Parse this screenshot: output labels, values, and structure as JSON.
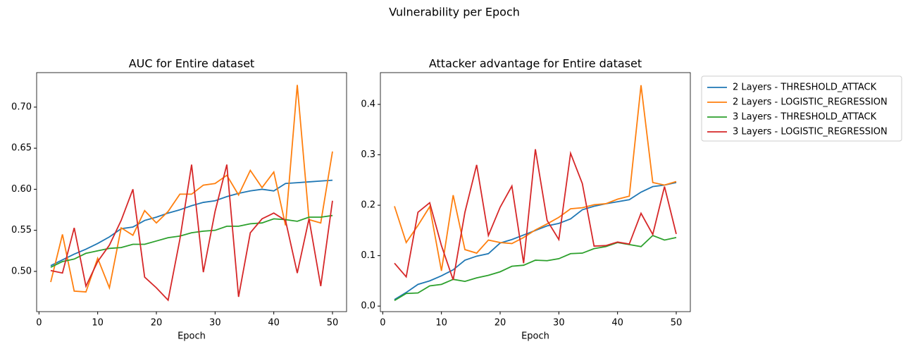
{
  "title": "Vulnerability per Epoch",
  "chart_data": [
    {
      "type": "line",
      "title": "AUC for Entire dataset",
      "xlabel": "Epoch",
      "x": [
        2,
        4,
        6,
        8,
        10,
        12,
        14,
        16,
        18,
        20,
        22,
        24,
        26,
        28,
        30,
        32,
        34,
        36,
        38,
        40,
        42,
        44,
        46,
        48,
        50
      ],
      "xlim": [
        -0.4,
        52.4
      ],
      "xticks": [
        0,
        10,
        20,
        30,
        40,
        50
      ],
      "ylim": [
        0.451,
        0.742
      ],
      "yticks": [
        {
          "value": 0.5,
          "label": "0.50"
        },
        {
          "value": 0.55,
          "label": "0.55"
        },
        {
          "value": 0.6,
          "label": "0.60"
        },
        {
          "value": 0.65,
          "label": "0.65"
        },
        {
          "value": 0.7,
          "label": "0.70"
        }
      ],
      "series": [
        {
          "color": "#1f77b4",
          "values": [
            0.507,
            0.514,
            0.521,
            0.527,
            0.534,
            0.542,
            0.552,
            0.554,
            0.562,
            0.566,
            0.571,
            0.575,
            0.58,
            0.584,
            0.586,
            0.591,
            0.595,
            0.598,
            0.6,
            0.598,
            0.607,
            0.608,
            0.609,
            0.61,
            0.611
          ]
        },
        {
          "color": "#ff7f0e",
          "values": [
            0.487,
            0.545,
            0.476,
            0.475,
            0.516,
            0.48,
            0.553,
            0.544,
            0.574,
            0.559,
            0.573,
            0.594,
            0.594,
            0.605,
            0.607,
            0.617,
            0.593,
            0.623,
            0.602,
            0.621,
            0.556,
            0.727,
            0.563,
            0.559,
            0.646
          ]
        },
        {
          "color": "#2ca02c",
          "values": [
            0.505,
            0.512,
            0.515,
            0.522,
            0.525,
            0.528,
            0.529,
            0.533,
            0.533,
            0.537,
            0.541,
            0.543,
            0.547,
            0.549,
            0.55,
            0.555,
            0.555,
            0.558,
            0.559,
            0.564,
            0.563,
            0.561,
            0.566,
            0.566,
            0.568
          ]
        },
        {
          "color": "#d62728",
          "values": [
            0.501,
            0.498,
            0.553,
            0.482,
            0.512,
            0.532,
            0.562,
            0.6,
            0.493,
            0.48,
            0.465,
            0.539,
            0.63,
            0.499,
            0.573,
            0.63,
            0.469,
            0.547,
            0.564,
            0.571,
            0.562,
            0.498,
            0.564,
            0.482,
            0.586
          ]
        }
      ]
    },
    {
      "type": "line",
      "title": "Attacker advantage for Entire dataset",
      "xlabel": "Epoch",
      "x": [
        2,
        4,
        6,
        8,
        10,
        12,
        14,
        16,
        18,
        20,
        22,
        24,
        26,
        28,
        30,
        32,
        34,
        36,
        38,
        40,
        42,
        44,
        46,
        48,
        50
      ],
      "xlim": [
        -0.4,
        52.4
      ],
      "xticks": [
        0,
        10,
        20,
        30,
        40,
        50
      ],
      "ylim": [
        -0.011,
        0.463
      ],
      "yticks": [
        {
          "value": 0,
          "label": "0.0"
        },
        0.1,
        0.2,
        0.3,
        0.4
      ],
      "legend": "right",
      "series": [
        {
          "name": "2 Layers - THRESHOLD_ATTACK",
          "color": "#1f77b4",
          "values": [
            0.013,
            0.027,
            0.043,
            0.05,
            0.06,
            0.072,
            0.091,
            0.099,
            0.104,
            0.125,
            0.132,
            0.141,
            0.15,
            0.159,
            0.164,
            0.173,
            0.191,
            0.198,
            0.203,
            0.207,
            0.211,
            0.226,
            0.237,
            0.24,
            0.245
          ]
        },
        {
          "name": "2 Layers - LOGISTIC_REGRESSION",
          "color": "#ff7f0e",
          "values": [
            0.198,
            0.126,
            0.16,
            0.197,
            0.07,
            0.22,
            0.112,
            0.105,
            0.131,
            0.126,
            0.124,
            0.136,
            0.151,
            0.163,
            0.176,
            0.193,
            0.195,
            0.201,
            0.203,
            0.212,
            0.218,
            0.438,
            0.245,
            0.24,
            0.247
          ]
        },
        {
          "name": "3 Layers - THRESHOLD_ATTACK",
          "color": "#2ca02c",
          "values": [
            0.011,
            0.025,
            0.026,
            0.04,
            0.043,
            0.053,
            0.049,
            0.056,
            0.061,
            0.068,
            0.079,
            0.081,
            0.091,
            0.09,
            0.094,
            0.104,
            0.105,
            0.114,
            0.118,
            0.126,
            0.122,
            0.118,
            0.14,
            0.131,
            0.136
          ]
        },
        {
          "name": "3 Layers - LOGISTIC_REGRESSION",
          "color": "#d62728",
          "values": [
            0.085,
            0.058,
            0.186,
            0.205,
            0.12,
            0.052,
            0.186,
            0.28,
            0.14,
            0.196,
            0.238,
            0.085,
            0.311,
            0.17,
            0.132,
            0.303,
            0.243,
            0.119,
            0.12,
            0.127,
            0.123,
            0.184,
            0.142,
            0.237,
            0.143
          ]
        }
      ]
    }
  ]
}
